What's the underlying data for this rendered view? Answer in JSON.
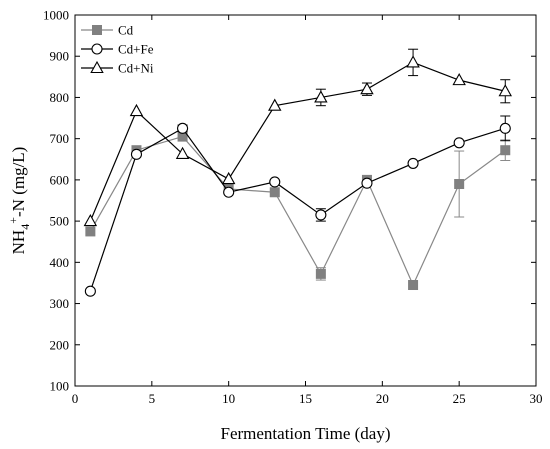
{
  "chart_data": {
    "type": "line",
    "xlabel": "Fermentation Time (day)",
    "ylabel": {
      "main": "NH",
      "sub": "4",
      "sup": "+",
      "rest": "-N (mg/L)"
    },
    "xlim": [
      0,
      30
    ],
    "ylim": [
      100,
      1000
    ],
    "xticks": [
      0,
      5,
      10,
      15,
      20,
      25,
      30
    ],
    "yticks": [
      100,
      200,
      300,
      400,
      500,
      600,
      700,
      800,
      900,
      1000
    ],
    "grid": false,
    "legend_position": "top-left",
    "x": [
      1,
      4,
      7,
      10,
      13,
      16,
      19,
      22,
      25,
      28
    ],
    "series": [
      {
        "name": "Cd",
        "marker": "square",
        "color": "#888888",
        "values": [
          475,
          672,
          705,
          578,
          570,
          372,
          600,
          345,
          590,
          672
        ],
        "errors": [
          0,
          0,
          0,
          0,
          0,
          15,
          0,
          0,
          80,
          25
        ]
      },
      {
        "name": "Cd+Fe",
        "marker": "circle",
        "color": "#000000",
        "values": [
          330,
          662,
          725,
          570,
          595,
          515,
          592,
          640,
          690,
          725
        ],
        "errors": [
          0,
          0,
          8,
          0,
          0,
          15,
          0,
          0,
          0,
          30
        ]
      },
      {
        "name": "Cd+Ni",
        "marker": "triangle",
        "color": "#000000",
        "values": [
          500,
          767,
          663,
          602,
          780,
          800,
          820,
          885,
          842,
          815
        ],
        "errors": [
          0,
          0,
          0,
          0,
          0,
          20,
          15,
          32,
          0,
          28
        ]
      }
    ]
  }
}
